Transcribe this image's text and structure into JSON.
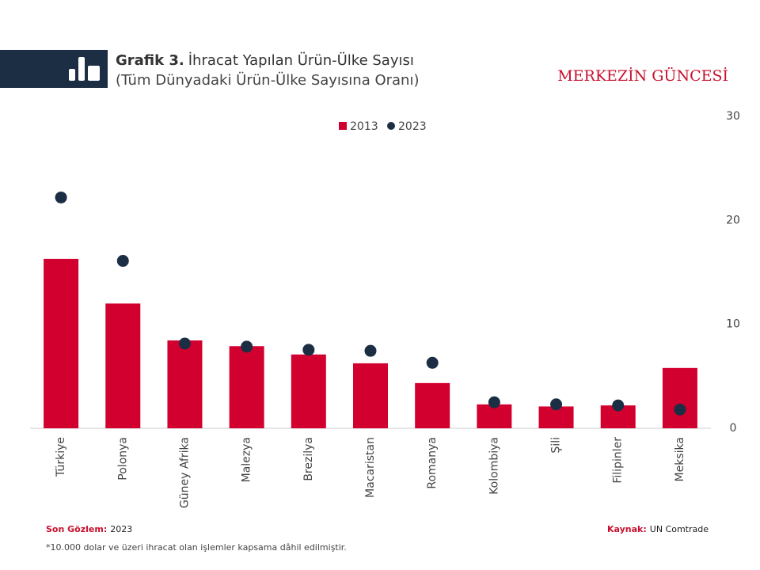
{
  "header": {
    "label": "Grafik 3.",
    "title": "İhracat Yapılan Ürün-Ülke Sayısı",
    "subtitle": "(Tüm Dünyadaki Ürün-Ülke Sayısına Oranı)",
    "brand": "MERKEZİN GÜNCESİ"
  },
  "chart_data": {
    "type": "bar-dot",
    "categories": [
      "Türkiye",
      "Polonya",
      "Güney Afrika",
      "Malezya",
      "Brezilya",
      "Macaristan",
      "Romanya",
      "Kolombiya",
      "Şili",
      "Filipinler",
      "Meksika"
    ],
    "series": [
      {
        "name": "2013",
        "color": "#d2002f",
        "mark": "bar",
        "values": [
          16.3,
          12.0,
          8.45,
          7.9,
          7.1,
          6.25,
          4.35,
          2.3,
          2.1,
          2.2,
          5.8
        ]
      },
      {
        "name": "2023",
        "color": "#1c2e44",
        "mark": "dot",
        "values": [
          22.2,
          16.1,
          8.15,
          7.85,
          7.55,
          7.45,
          6.3,
          2.5,
          2.3,
          2.2,
          1.8
        ]
      }
    ],
    "ylim": [
      0,
      30
    ],
    "yticks": [
      0,
      10,
      20,
      30
    ],
    "y_axis_side": "right",
    "grid": false,
    "legend": "top"
  },
  "footer": {
    "last_obs_label": "Son Gözlem:",
    "last_obs": "2023",
    "source_label": "Kaynak:",
    "source": "UN Comtrade",
    "note": "*10.000 dolar ve üzeri ihracat olan işlemler kapsama dâhil edilmiştir."
  }
}
